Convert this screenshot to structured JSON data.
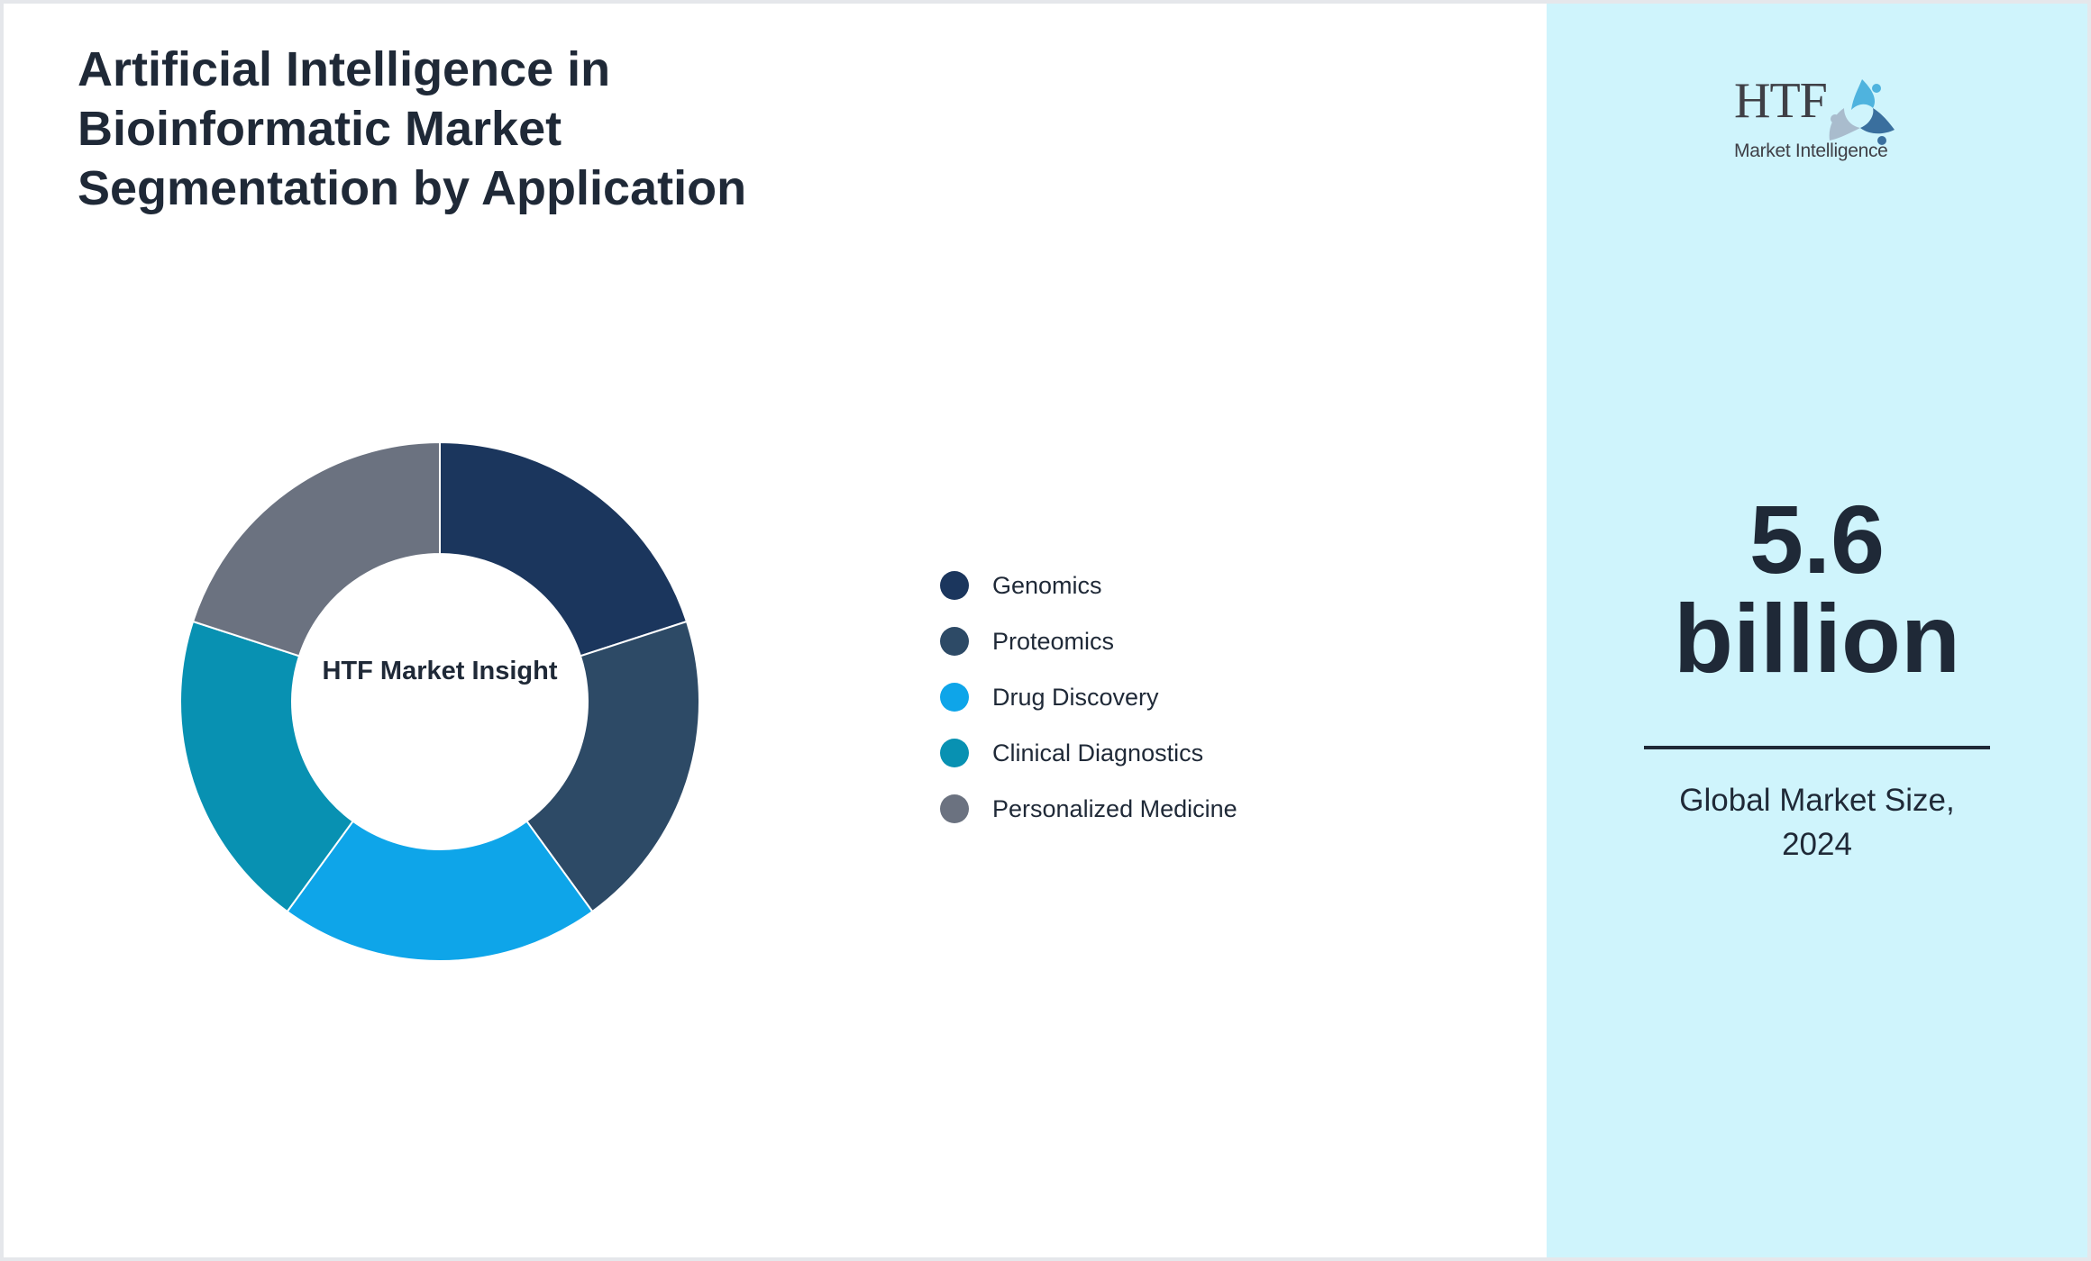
{
  "header": {
    "title": "Artificial Intelligence in Bioinformatic Market Segmentation by Application"
  },
  "chart_data": {
    "type": "pie",
    "subtype": "donut",
    "title": "Artificial Intelligence in Bioinformatic Market Segmentation by Application",
    "center_label": "HTF Market Insight",
    "categories": [
      "Genomics",
      "Proteomics",
      "Drug Discovery",
      "Clinical Diagnostics",
      "Personalized Medicine"
    ],
    "values": [
      20,
      20,
      20,
      20,
      20
    ],
    "colors": [
      "#1b365d",
      "#2d4a66",
      "#0ea5e9",
      "#0891b2",
      "#6b7280"
    ],
    "legend_position": "right",
    "start_angle_deg": 0,
    "direction": "clockwise"
  },
  "donut": {
    "center_label": "HTF Market Insight"
  },
  "legend": {
    "items": [
      {
        "label": "Genomics",
        "color": "#1b365d"
      },
      {
        "label": "Proteomics",
        "color": "#2d4a66"
      },
      {
        "label": "Drug Discovery",
        "color": "#0ea5e9"
      },
      {
        "label": "Clinical Diagnostics",
        "color": "#0891b2"
      },
      {
        "label": "Personalized Medicine",
        "color": "#6b7280"
      }
    ]
  },
  "sidebar": {
    "logo": {
      "wordmark": "HTF",
      "tagline": "Market Intelligence",
      "icon": "people-circle-logo-icon"
    },
    "market_size_value": "5.6 billion",
    "market_size_caption": "Global Market Size, 2024",
    "background_color": "#cff4fc"
  },
  "colors": {
    "text": "#1f2937",
    "border": "#e5e7eb",
    "sidebar_bg": "#cff4fc"
  }
}
